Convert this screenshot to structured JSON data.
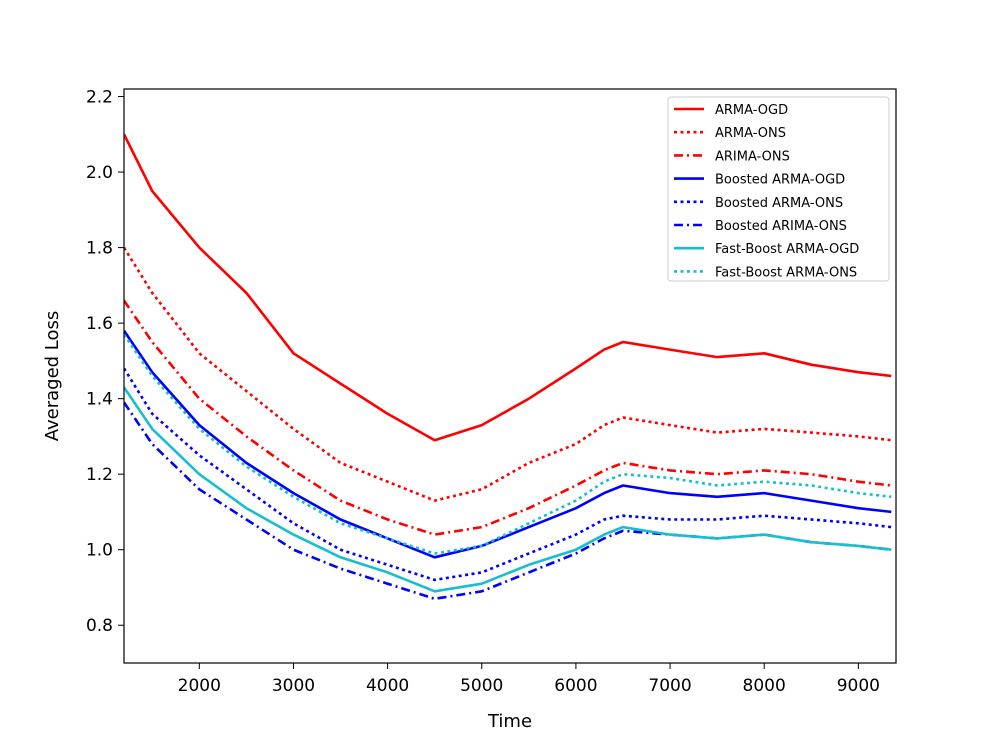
{
  "chart_data": {
    "type": "line",
    "title": "",
    "xlabel": "Time",
    "ylabel": "Averaged Loss",
    "xlim": [
      1200,
      9400
    ],
    "ylim": [
      0.7,
      2.22
    ],
    "xticks": [
      2000,
      3000,
      4000,
      5000,
      6000,
      7000,
      8000,
      9000
    ],
    "yticks": [
      0.8,
      1.0,
      1.2,
      1.4,
      1.6,
      1.8,
      2.0,
      2.2
    ],
    "xtick_labels": [
      "2000",
      "3000",
      "4000",
      "5000",
      "6000",
      "7000",
      "8000",
      "9000"
    ],
    "ytick_labels": [
      "0.8",
      "1.0",
      "1.2",
      "1.4",
      "1.6",
      "1.8",
      "2.0",
      "2.2"
    ],
    "grid": false,
    "legend_position": "top-right",
    "x": [
      1200,
      1500,
      2000,
      2500,
      3000,
      3500,
      4000,
      4500,
      5000,
      5500,
      6000,
      6300,
      6500,
      7000,
      7500,
      8000,
      8500,
      9000,
      9350
    ],
    "series": [
      {
        "name": "ARMA-OGD",
        "color": "#ff0000",
        "dash": "solid",
        "values": [
          2.1,
          1.95,
          1.8,
          1.68,
          1.52,
          1.44,
          1.36,
          1.29,
          1.33,
          1.4,
          1.48,
          1.53,
          1.55,
          1.53,
          1.51,
          1.52,
          1.49,
          1.47,
          1.46
        ]
      },
      {
        "name": "ARMA-ONS",
        "color": "#ff0000",
        "dash": "dotted",
        "values": [
          1.8,
          1.68,
          1.52,
          1.42,
          1.32,
          1.23,
          1.18,
          1.13,
          1.16,
          1.23,
          1.28,
          1.33,
          1.35,
          1.33,
          1.31,
          1.32,
          1.31,
          1.3,
          1.29
        ]
      },
      {
        "name": "ARIMA-ONS",
        "color": "#ff0000",
        "dash": "dashdot",
        "values": [
          1.66,
          1.55,
          1.4,
          1.3,
          1.21,
          1.13,
          1.08,
          1.04,
          1.06,
          1.11,
          1.17,
          1.21,
          1.23,
          1.21,
          1.2,
          1.21,
          1.2,
          1.18,
          1.17
        ]
      },
      {
        "name": "Boosted ARMA-OGD",
        "color": "#0000ff",
        "dash": "solid",
        "values": [
          1.58,
          1.47,
          1.33,
          1.23,
          1.15,
          1.08,
          1.03,
          0.98,
          1.01,
          1.06,
          1.11,
          1.15,
          1.17,
          1.15,
          1.14,
          1.15,
          1.13,
          1.11,
          1.1
        ]
      },
      {
        "name": "Boosted ARMA-ONS",
        "color": "#0000ff",
        "dash": "dotted",
        "values": [
          1.48,
          1.36,
          1.25,
          1.16,
          1.07,
          1.0,
          0.96,
          0.92,
          0.94,
          0.99,
          1.04,
          1.08,
          1.09,
          1.08,
          1.08,
          1.09,
          1.08,
          1.07,
          1.06
        ]
      },
      {
        "name": "Boosted ARIMA-ONS",
        "color": "#0000ff",
        "dash": "dashdot",
        "values": [
          1.39,
          1.28,
          1.16,
          1.08,
          1.0,
          0.95,
          0.91,
          0.87,
          0.89,
          0.94,
          0.99,
          1.03,
          1.05,
          1.04,
          1.03,
          1.04,
          1.02,
          1.01,
          1.0
        ]
      },
      {
        "name": "Fast-Boost ARMA-OGD",
        "color": "#17becf",
        "dash": "solid",
        "values": [
          1.43,
          1.32,
          1.2,
          1.11,
          1.04,
          0.98,
          0.94,
          0.89,
          0.91,
          0.96,
          1.0,
          1.04,
          1.06,
          1.04,
          1.03,
          1.04,
          1.02,
          1.01,
          1.0
        ]
      },
      {
        "name": "Fast-Boost ARMA-ONS",
        "color": "#17becf",
        "dash": "dotted",
        "values": [
          1.57,
          1.46,
          1.32,
          1.22,
          1.14,
          1.07,
          1.03,
          0.99,
          1.01,
          1.07,
          1.13,
          1.18,
          1.2,
          1.19,
          1.17,
          1.18,
          1.17,
          1.15,
          1.14
        ]
      }
    ]
  }
}
